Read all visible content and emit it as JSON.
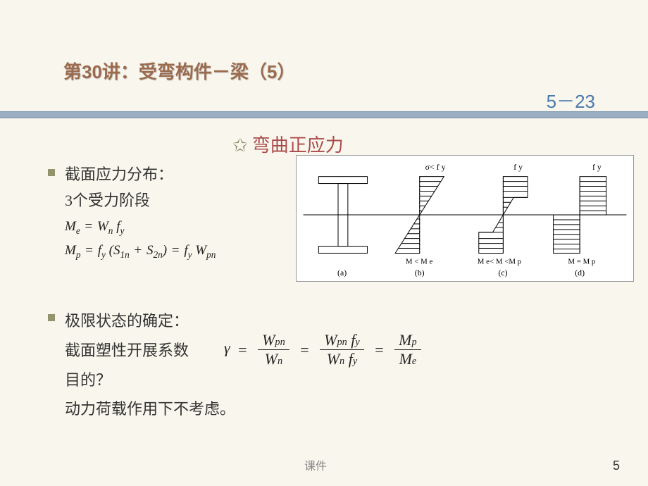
{
  "title": "第30讲：受弯构件－梁（5）",
  "page_ref": "5－23",
  "subtitle": "弯曲正应力",
  "section1": {
    "heading": "截面应力分布：",
    "line2": "3个受力阶段",
    "eq1_html": "M<span class='sub'>e</span> <span class='op'>=</span> W<span class='sub'>n</span> f<span class='sub'>y</span>",
    "eq2_html": "M<span class='sub'>p</span> <span class='op'>=</span> f<span class='sub'>y</span> (S<span class='sub'>1n</span> <span class='op'>+</span> S<span class='sub'>2n</span>) <span class='op'>=</span> f<span class='sub'>y</span> W<span class='sub'>pn</span>"
  },
  "section2": {
    "heading": "极限状态的确定：",
    "line2": "截面塑性开展系数",
    "line3": "目的？",
    "line4": "动力荷载作用下不考虑。"
  },
  "gamma": {
    "lhs": "γ",
    "f1_num": "W<span class='sub'>pn</span>",
    "f1_den": "W<span class='sub'>n</span>",
    "f2_num": "W<span class='sub'>pn</span> f<span class='sub'>y</span>",
    "f2_den": "W<span class='sub'>n</span> f<span class='sub'>y</span>",
    "f3_num": "M<span class='sub'>p</span>",
    "f3_den": "M<span class='sub'>e</span>"
  },
  "figure": {
    "top_labels": [
      "σ< f y",
      "f y",
      "f y"
    ],
    "bottom_eq": [
      "M < M e",
      "M e < M < M p",
      "M = M p"
    ],
    "sub_labels": [
      "(a)",
      "(b)",
      "(c)",
      "(d)"
    ],
    "stroke": "#000000",
    "bg": "#ffffff",
    "hatch_gap": 7
  },
  "footer": {
    "label": "课件",
    "page": "5"
  },
  "colors": {
    "title": "#9b6b4e",
    "pagenum": "#4a7aac",
    "band": "#9aaec2",
    "subtitle": "#ab4a4a",
    "bullet": "#93936e",
    "bg": "#f9f7ed"
  }
}
